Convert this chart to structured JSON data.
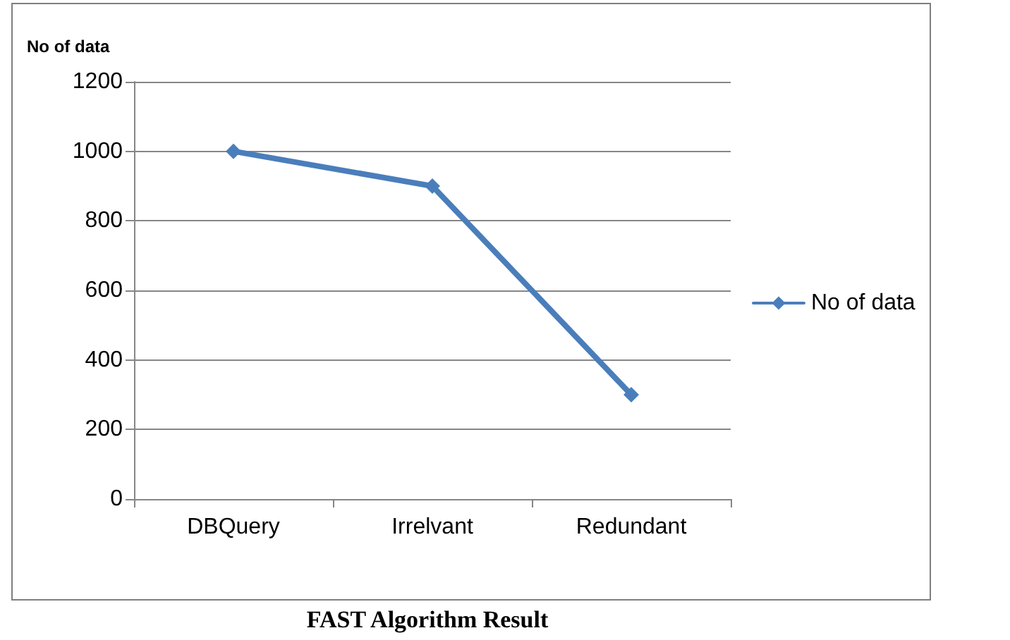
{
  "chart_data": {
    "type": "line",
    "ylabel": "No of data",
    "categories": [
      "DBQuery",
      "Irrelvant",
      "Redundant"
    ],
    "series": [
      {
        "name": "No of data",
        "color": "#4a7ebb",
        "values": [
          1000,
          900,
          300
        ]
      }
    ],
    "ylim": [
      0,
      1200
    ],
    "yticks": [
      0,
      200,
      400,
      600,
      800,
      1000,
      1200
    ],
    "grid": "y",
    "legend": "right",
    "marker": "diamond",
    "line_style": "solid",
    "annotations": [
      "FAST Algorithm Result"
    ]
  }
}
